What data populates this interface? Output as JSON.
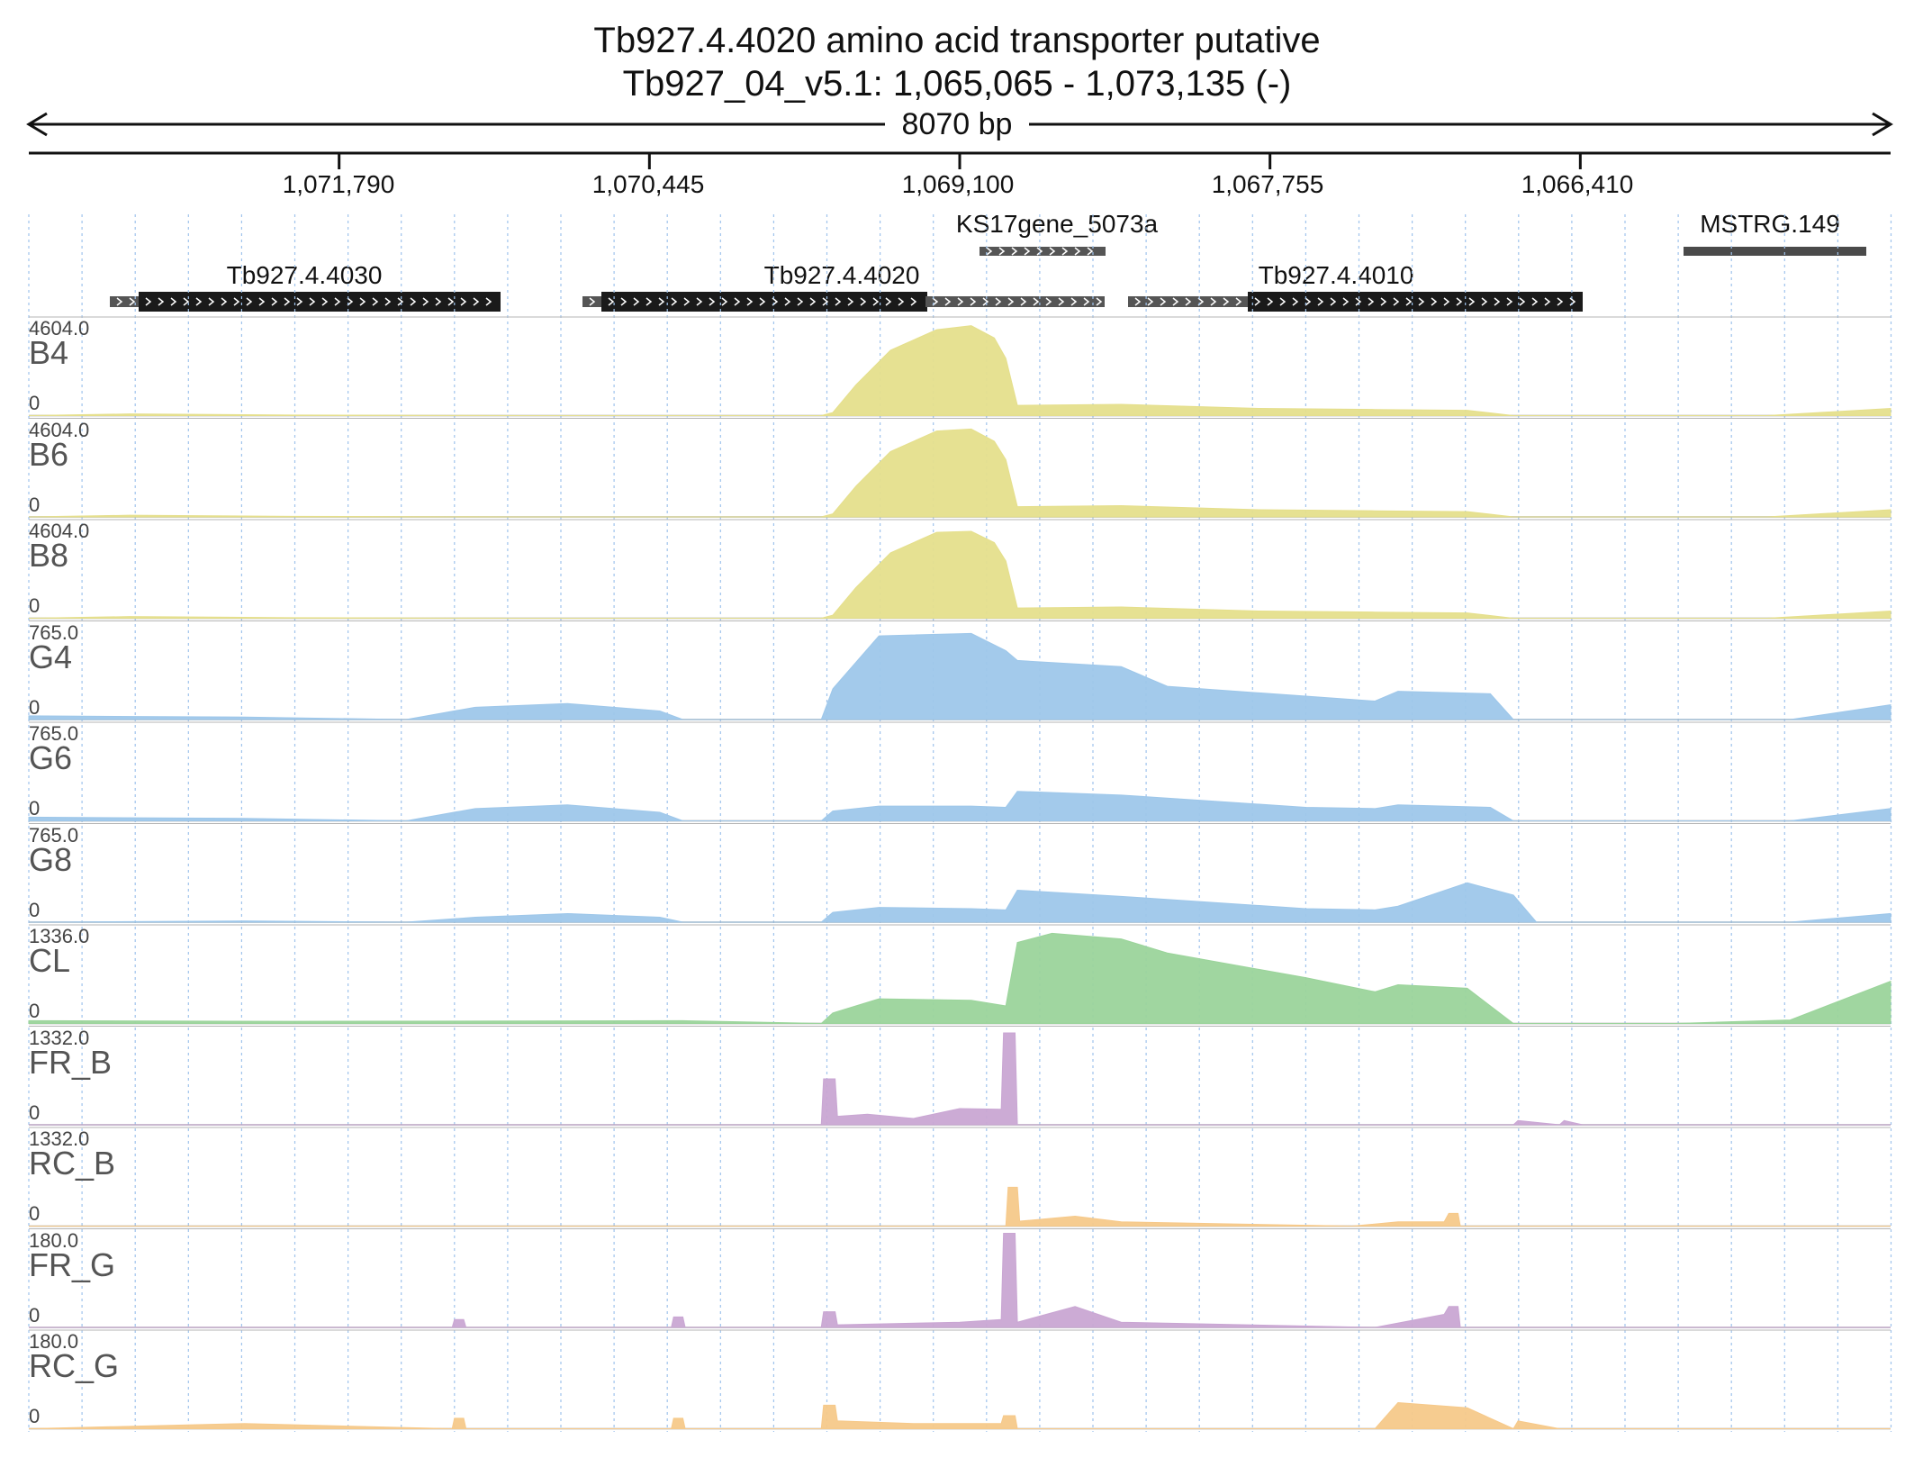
{
  "header": {
    "title": "Tb927.4.4020  amino acid transporter  putative",
    "location": "Tb927_04_v5.1: 1,065,065 - 1,073,135 (-)",
    "span": "8070 bp"
  },
  "axis": {
    "ticks": [
      "1,071,790",
      "1,070,445",
      "1,069,100",
      "1,067,755",
      "1,066,410"
    ]
  },
  "genes": [
    {
      "name": "KS17gene_5073a"
    },
    {
      "name": "MSTRG.149"
    },
    {
      "name": "Tb927.4.4030"
    },
    {
      "name": "Tb927.4.4020"
    },
    {
      "name": "Tb927.4.4010"
    }
  ],
  "colors": {
    "B": "#e5df8c",
    "G": "#9ec7ea",
    "CL": "#9bd49b",
    "FR": "#c9a6d3",
    "RC": "#f6c98a",
    "gridline": "#9fc3ec",
    "gene": "#1a1a1a"
  },
  "chart_data": {
    "type": "area",
    "x_range": [
      1073135,
      1065065
    ],
    "x_unit": "bp",
    "series": [
      {
        "name": "B4",
        "max": "4604.0",
        "min": "0",
        "max_value": 4604.0,
        "color_key": "B",
        "x": [
          1073135,
          1072700,
          1072000,
          1071000,
          1070000,
          1069700,
          1069650,
          1069550,
          1069400,
          1069200,
          1069050,
          1068950,
          1068900,
          1068850,
          1068400,
          1067800,
          1067300,
          1066900,
          1066700,
          1066000,
          1065600,
          1065065
        ],
        "y": [
          0,
          80,
          30,
          0,
          0,
          0,
          150,
          1500,
          3200,
          4200,
          4400,
          3800,
          2800,
          500,
          550,
          350,
          300,
          260,
          0,
          0,
          0,
          350
        ]
      },
      {
        "name": "B6",
        "max": "4604.0",
        "min": "0",
        "max_value": 4604.0,
        "color_key": "B",
        "x": [
          1073135,
          1072700,
          1072000,
          1071000,
          1070000,
          1069700,
          1069650,
          1069550,
          1069400,
          1069200,
          1069050,
          1068950,
          1068900,
          1068850,
          1068400,
          1067800,
          1067300,
          1066900,
          1066700,
          1066000,
          1065600,
          1065065
        ],
        "y": [
          0,
          80,
          30,
          0,
          0,
          0,
          150,
          1500,
          3200,
          4200,
          4300,
          3700,
          2800,
          500,
          550,
          350,
          300,
          260,
          0,
          0,
          0,
          350
        ]
      },
      {
        "name": "B8",
        "max": "4604.0",
        "min": "0",
        "max_value": 4604.0,
        "color_key": "B",
        "x": [
          1073135,
          1072700,
          1072000,
          1071000,
          1070000,
          1069700,
          1069650,
          1069550,
          1069400,
          1069200,
          1069050,
          1068950,
          1068900,
          1068850,
          1068400,
          1067800,
          1067300,
          1066900,
          1066700,
          1066000,
          1065600,
          1065065
        ],
        "y": [
          0,
          80,
          30,
          0,
          0,
          0,
          150,
          1500,
          3200,
          4200,
          4250,
          3700,
          2800,
          500,
          550,
          350,
          300,
          260,
          0,
          0,
          0,
          350
        ]
      },
      {
        "name": "G4",
        "max": "765.0",
        "min": "0",
        "max_value": 765.0,
        "color_key": "G",
        "x": [
          1073135,
          1072200,
          1071500,
          1071200,
          1070800,
          1070400,
          1070300,
          1069700,
          1069650,
          1069450,
          1069050,
          1068900,
          1068850,
          1068400,
          1068200,
          1067600,
          1067300,
          1067200,
          1066800,
          1066700,
          1065500,
          1065065
        ],
        "y": [
          30,
          20,
          0,
          100,
          130,
          70,
          0,
          0,
          250,
          680,
          700,
          560,
          480,
          430,
          270,
          190,
          150,
          230,
          210,
          0,
          0,
          120
        ]
      },
      {
        "name": "G6",
        "max": "765.0",
        "min": "0",
        "max_value": 765.0,
        "color_key": "G",
        "x": [
          1073135,
          1072200,
          1071500,
          1071200,
          1070800,
          1070400,
          1070300,
          1069700,
          1069650,
          1069450,
          1069050,
          1068900,
          1068850,
          1068400,
          1067600,
          1067300,
          1067200,
          1066800,
          1066700,
          1065500,
          1065065
        ],
        "y": [
          30,
          20,
          0,
          100,
          130,
          70,
          0,
          0,
          80,
          120,
          120,
          110,
          240,
          210,
          110,
          100,
          130,
          110,
          0,
          0,
          100
        ]
      },
      {
        "name": "G8",
        "max": "765.0",
        "min": "0",
        "max_value": 765.0,
        "color_key": "G",
        "x": [
          1073135,
          1072200,
          1071500,
          1071200,
          1070800,
          1070400,
          1070300,
          1069700,
          1069650,
          1069450,
          1069050,
          1068900,
          1068850,
          1068400,
          1067600,
          1067300,
          1067200,
          1066900,
          1066700,
          1066600,
          1065500,
          1065065
        ],
        "y": [
          0,
          10,
          0,
          40,
          70,
          40,
          0,
          0,
          80,
          120,
          110,
          100,
          260,
          210,
          110,
          100,
          130,
          320,
          220,
          0,
          0,
          70
        ]
      },
      {
        "name": "CL",
        "max": "1336.0",
        "min": "0",
        "max_value": 1336.0,
        "color_key": "CL",
        "x": [
          1073135,
          1072000,
          1070300,
          1069700,
          1069650,
          1069450,
          1069050,
          1068900,
          1068850,
          1068700,
          1068400,
          1068200,
          1067600,
          1067300,
          1067200,
          1066900,
          1066700,
          1066000,
          1065500,
          1065065
        ],
        "y": [
          40,
          30,
          40,
          0,
          150,
          350,
          330,
          250,
          1150,
          1280,
          1200,
          1000,
          650,
          450,
          550,
          500,
          0,
          0,
          50,
          600
        ]
      },
      {
        "name": "FR_B",
        "max": "1332.0",
        "min": "0",
        "max_value": 1332.0,
        "color_key": "FR",
        "x": [
          1073135,
          1069700,
          1069690,
          1069640,
          1069630,
          1069500,
          1069300,
          1069100,
          1068920,
          1068910,
          1068860,
          1068850,
          1067200,
          1066700,
          1066680,
          1066500,
          1066480,
          1066400,
          1065065
        ],
        "y": [
          0,
          0,
          650,
          650,
          120,
          150,
          90,
          230,
          220,
          1300,
          1300,
          0,
          0,
          0,
          60,
          0,
          60,
          0,
          0
        ]
      },
      {
        "name": "RC_B",
        "max": "1332.0",
        "min": "0",
        "max_value": 1332.0,
        "color_key": "RC",
        "x": [
          1073135,
          1068900,
          1068890,
          1068850,
          1068840,
          1068600,
          1068400,
          1067400,
          1067200,
          1067000,
          1066980,
          1066940,
          1066930,
          1065065
        ],
        "y": [
          0,
          0,
          550,
          550,
          70,
          140,
          60,
          0,
          60,
          60,
          180,
          180,
          0,
          0
        ]
      },
      {
        "name": "FR_G",
        "max": "180.0",
        "min": "0",
        "max_value": 180.0,
        "color_key": "FR",
        "x": [
          1073135,
          1071300,
          1071290,
          1071250,
          1071240,
          1070350,
          1070340,
          1070300,
          1070290,
          1069700,
          1069690,
          1069640,
          1069630,
          1069100,
          1068920,
          1068910,
          1068860,
          1068850,
          1068600,
          1068400,
          1067300,
          1067000,
          1066980,
          1066940,
          1066930,
          1065065
        ],
        "y": [
          0,
          0,
          15,
          15,
          0,
          0,
          20,
          20,
          0,
          0,
          30,
          30,
          5,
          10,
          15,
          180,
          180,
          10,
          40,
          10,
          0,
          25,
          40,
          40,
          0,
          0
        ]
      },
      {
        "name": "RC_G",
        "max": "180.0",
        "min": "0",
        "max_value": 180.0,
        "color_key": "RC",
        "x": [
          1073135,
          1072200,
          1071300,
          1071290,
          1071250,
          1071240,
          1070350,
          1070340,
          1070300,
          1070290,
          1069700,
          1069690,
          1069640,
          1069630,
          1069300,
          1068920,
          1068910,
          1068860,
          1068850,
          1067300,
          1067200,
          1066900,
          1066700,
          1066680,
          1066500,
          1065065
        ],
        "y": [
          0,
          10,
          0,
          20,
          20,
          0,
          0,
          20,
          20,
          0,
          0,
          45,
          45,
          15,
          10,
          10,
          25,
          25,
          0,
          0,
          50,
          40,
          0,
          15,
          0,
          0
        ]
      }
    ]
  }
}
